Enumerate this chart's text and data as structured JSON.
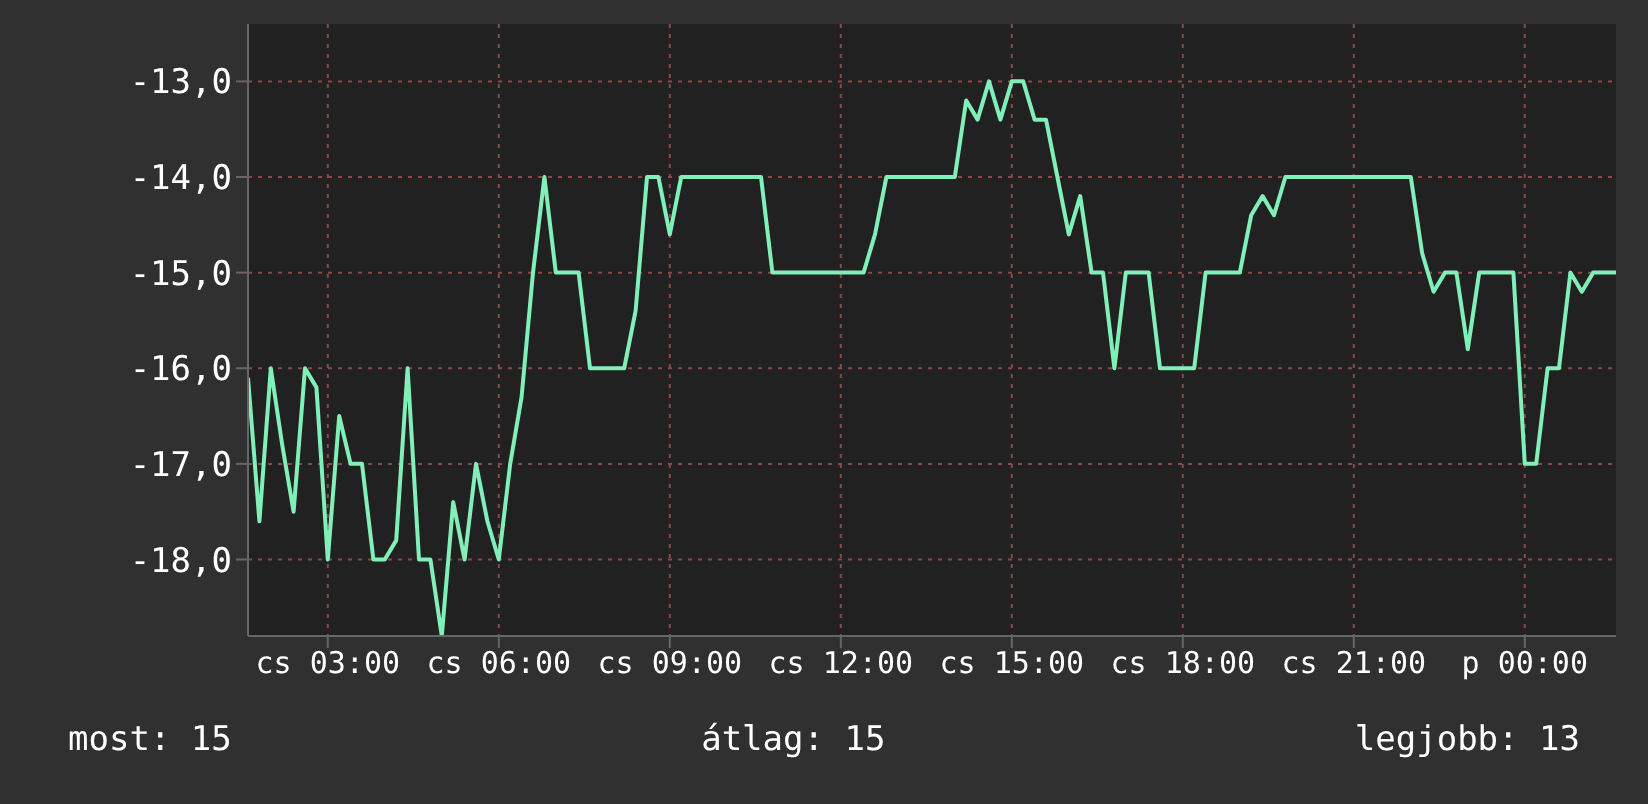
{
  "chart_data": {
    "type": "line",
    "ylim": [
      -18.8,
      -12.4
    ],
    "categories": [
      null,
      null,
      null,
      null,
      null,
      null,
      null,
      "cs 03:00",
      null,
      null,
      null,
      null,
      null,
      null,
      null,
      null,
      null,
      null,
      null,
      null,
      null,
      null,
      "cs 06:00",
      null,
      null,
      null,
      null,
      null,
      null,
      null,
      null,
      null,
      null,
      null,
      null,
      null,
      null,
      "cs 09:00",
      null,
      null,
      null,
      null,
      null,
      null,
      null,
      null,
      null,
      null,
      null,
      null,
      null,
      null,
      "cs 12:00",
      null,
      null,
      null,
      null,
      null,
      null,
      null,
      null,
      null,
      null,
      null,
      null,
      null,
      null,
      "cs 15:00",
      null,
      null,
      null,
      null,
      null,
      null,
      null,
      null,
      null,
      null,
      null,
      null,
      null,
      null,
      "cs 18:00",
      null,
      null,
      null,
      null,
      null,
      null,
      null,
      null,
      null,
      null,
      null,
      null,
      null,
      null,
      "cs 21:00",
      null,
      null,
      null,
      null,
      null,
      null,
      null,
      null,
      null,
      null,
      null,
      null,
      null,
      null,
      "p 00:00",
      null,
      null,
      null,
      null,
      null,
      null,
      null,
      null
    ],
    "yticks": [
      {
        "value": -18,
        "label": "-18,0"
      },
      {
        "value": -17,
        "label": "-17,0"
      },
      {
        "value": -16,
        "label": "-16,0"
      },
      {
        "value": -15,
        "label": "-15,0"
      },
      {
        "value": -14,
        "label": "-14,0"
      },
      {
        "value": -13,
        "label": "-13,0"
      }
    ],
    "grid": true,
    "marker": "none",
    "line_style": "solid",
    "annotations": [
      "most: 15",
      "átlag: 15",
      "legjobb: 13"
    ],
    "series": [
      {
        "color": "#80f0b8",
        "values": [
          -16.1,
          -17.6,
          -16.0,
          -16.8,
          -17.5,
          -16.0,
          -16.2,
          -18.0,
          -16.5,
          -17.0,
          -17.0,
          -18.0,
          -18.0,
          -17.8,
          -16.0,
          -18.0,
          -18.0,
          -18.8,
          -17.4,
          -18.0,
          -17.0,
          -17.6,
          -18.0,
          -17.0,
          -16.3,
          -15.0,
          -14.0,
          -15.0,
          -15.0,
          -15.0,
          -16.0,
          -16.0,
          -16.0,
          -16.0,
          -15.4,
          -14.0,
          -14.0,
          -14.6,
          -14.0,
          -14.0,
          -14.0,
          -14.0,
          -14.0,
          -14.0,
          -14.0,
          -14.0,
          -15.0,
          -15.0,
          -15.0,
          -15.0,
          -15.0,
          -15.0,
          -15.0,
          -15.0,
          -15.0,
          -14.6,
          -14.0,
          -14.0,
          -14.0,
          -14.0,
          -14.0,
          -14.0,
          -14.0,
          -13.2,
          -13.4,
          -13.0,
          -13.4,
          -13.0,
          -13.0,
          -13.4,
          -13.4,
          -14.0,
          -14.6,
          -14.2,
          -15.0,
          -15.0,
          -16.0,
          -15.0,
          -15.0,
          -15.0,
          -16.0,
          -16.0,
          -16.0,
          -16.0,
          -15.0,
          -15.0,
          -15.0,
          -15.0,
          -14.4,
          -14.2,
          -14.4,
          -14.0,
          -14.0,
          -14.0,
          -14.0,
          -14.0,
          -14.0,
          -14.0,
          -14.0,
          -14.0,
          -14.0,
          -14.0,
          -14.0,
          -14.8,
          -15.2,
          -15.0,
          -15.0,
          -15.8,
          -15.0,
          -15.0,
          -15.0,
          -15.0,
          -17.0,
          -17.0,
          -16.0,
          -16.0,
          -15.0,
          -15.2,
          -15.0,
          -15.0,
          -15.0
        ]
      }
    ]
  }
}
